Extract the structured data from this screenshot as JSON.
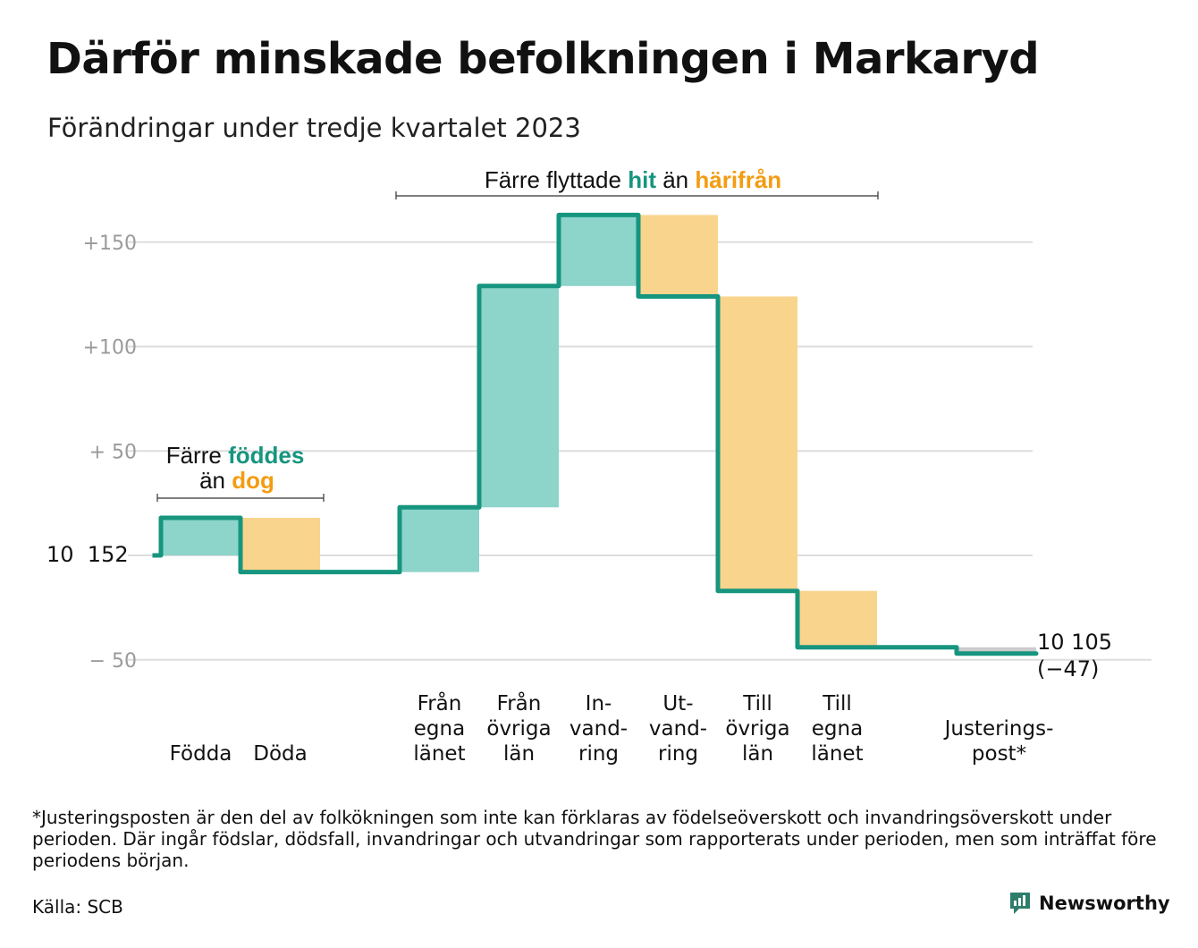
{
  "title": "Därför minskade befolkningen i Markaryd",
  "subtitle": "Förändringar under tredje kvartalet 2023",
  "colors": {
    "gain": "#8DD4CB",
    "loss": "#F9D48C",
    "line": "#16957F",
    "adjust": "#CCCCCC",
    "grid": "#DDDDDD",
    "tick": "#9A9A9A",
    "teal_text": "#16957F",
    "orange_text": "#F39C12"
  },
  "annotations": {
    "births": {
      "line1_prefix": "Färre",
      "line1_highlight": "föddes",
      "line2_prefix": "än",
      "line2_highlight": "dog"
    },
    "migration": {
      "prefix": "Färre flyttade",
      "highlight1": "hit",
      "middle": "än",
      "highlight2": "härifrån"
    }
  },
  "chart_data": {
    "type": "waterfall",
    "start_label": "10  152",
    "start_value": 10152,
    "end_label_line1": "10 105",
    "end_label_line2": "(−47)",
    "end_value": 10105,
    "y_axis": {
      "ticks": [
        {
          "value": 150,
          "label": "+150"
        },
        {
          "value": 100,
          "label": "+100"
        },
        {
          "value": 50,
          "label": "+  50"
        },
        {
          "value": -50,
          "label": "−  50"
        }
      ],
      "range": [
        -50,
        163
      ],
      "unit": "change from 10 152"
    },
    "steps": [
      {
        "category": [
          "Födda"
        ],
        "delta": 18,
        "cumulative": 18,
        "kind": "gain"
      },
      {
        "category": [
          "Döda"
        ],
        "delta": -26,
        "cumulative": -8,
        "kind": "loss"
      },
      {
        "category": [
          ""
        ],
        "delta": 0,
        "cumulative": -8,
        "kind": "none"
      },
      {
        "category": [
          "Från",
          "egna",
          "länet"
        ],
        "delta": 31,
        "cumulative": 23,
        "kind": "gain"
      },
      {
        "category": [
          "Från",
          "övriga",
          "län"
        ],
        "delta": 106,
        "cumulative": 129,
        "kind": "gain"
      },
      {
        "category": [
          "In-",
          "vand-",
          "ring"
        ],
        "delta": 34,
        "cumulative": 163,
        "kind": "gain"
      },
      {
        "category": [
          "Ut-",
          "vand-",
          "ring"
        ],
        "delta": -39,
        "cumulative": 124,
        "kind": "loss"
      },
      {
        "category": [
          "Till",
          "övriga",
          "län"
        ],
        "delta": -141,
        "cumulative": -17,
        "kind": "loss"
      },
      {
        "category": [
          "Till",
          "egna",
          "länet"
        ],
        "delta": -27,
        "cumulative": -44,
        "kind": "loss"
      },
      {
        "category": [
          ""
        ],
        "delta": 0,
        "cumulative": -44,
        "kind": "none"
      },
      {
        "category": [
          "Justerings-",
          "post*"
        ],
        "delta": -3,
        "cumulative": -47,
        "kind": "adjust"
      }
    ]
  },
  "footnote": "*Justeringsposten är den del av folkökningen som inte kan förklaras av födelseöverskott och invandringsöverskott under perioden. Där ingår födslar, dödsfall, invandringar och utvandringar som rapporterats under perioden, men som inträffat före periodens början.",
  "source": "Källa: SCB",
  "brand": "Newsworthy"
}
